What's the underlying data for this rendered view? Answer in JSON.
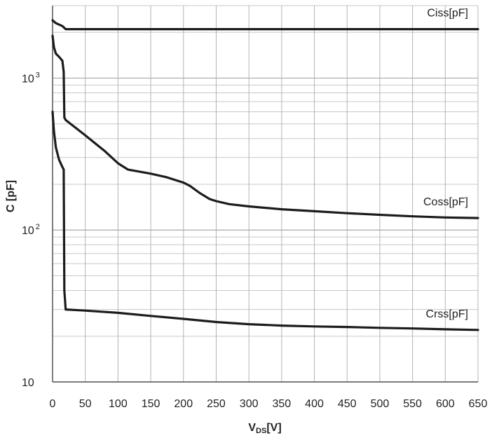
{
  "chart_data": {
    "type": "line",
    "xlabel": "V",
    "xlabel_sub": "DS",
    "xlabel_unit": "[V]",
    "ylabel": "C [pF]",
    "xlim": [
      0,
      650
    ],
    "ylim": [
      10,
      3000
    ],
    "yscale": "log",
    "grid": true,
    "x_ticks": [
      0,
      50,
      100,
      150,
      200,
      250,
      300,
      350,
      400,
      450,
      500,
      550,
      600,
      650
    ],
    "y_ticks": [
      {
        "value": 10,
        "base": "10",
        "exp": ""
      },
      {
        "value": 100,
        "base": "10",
        "exp": "2"
      },
      {
        "value": 1000,
        "base": "10",
        "exp": "3"
      }
    ],
    "series": [
      {
        "name": "Ciss[pF]",
        "color": "#1c1c1c",
        "x": [
          0,
          5,
          10,
          15,
          20,
          50,
          100,
          200,
          300,
          400,
          500,
          600,
          650
        ],
        "y": [
          2400,
          2300,
          2250,
          2200,
          2100,
          2100,
          2100,
          2100,
          2100,
          2100,
          2100,
          2100,
          2100
        ]
      },
      {
        "name": "Coss[pF]",
        "color": "#1c1c1c",
        "x": [
          0,
          2,
          5,
          10,
          15,
          17,
          18,
          20,
          50,
          80,
          100,
          115,
          150,
          175,
          200,
          210,
          225,
          240,
          250,
          270,
          300,
          350,
          400,
          450,
          500,
          550,
          600,
          650
        ],
        "y": [
          1900,
          1600,
          1450,
          1380,
          1300,
          1100,
          550,
          530,
          420,
          330,
          275,
          250,
          235,
          222,
          205,
          195,
          175,
          160,
          155,
          148,
          143,
          137,
          133,
          129,
          126,
          123,
          121,
          120
        ]
      },
      {
        "name": "Crss[pF]",
        "color": "#1c1c1c",
        "x": [
          0,
          2,
          5,
          10,
          15,
          17,
          18,
          20,
          50,
          100,
          150,
          200,
          250,
          300,
          350,
          400,
          450,
          500,
          550,
          600,
          650
        ],
        "y": [
          600,
          450,
          350,
          290,
          260,
          250,
          40,
          30,
          29.5,
          28.5,
          27.2,
          26,
          24.8,
          24,
          23.5,
          23.2,
          23,
          22.7,
          22.5,
          22.2,
          22
        ]
      }
    ]
  }
}
